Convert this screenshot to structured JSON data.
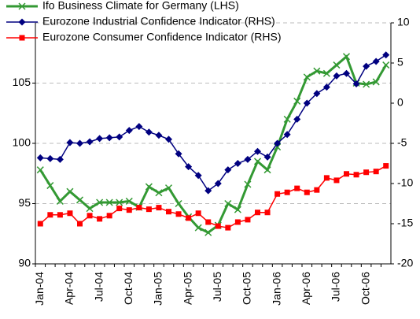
{
  "chart_data": {
    "type": "line",
    "categories": [
      "Jan-04",
      null,
      null,
      "Apr-04",
      null,
      null,
      "Jul-04",
      null,
      null,
      "Oct-04",
      null,
      null,
      "Jan-05",
      null,
      null,
      "Apr-05",
      null,
      null,
      "Jul-05",
      null,
      null,
      "Oct-05",
      null,
      null,
      "Jan-06",
      null,
      null,
      "Apr-06",
      null,
      null,
      "Jul-06",
      null,
      null,
      "Oct-06",
      null,
      null
    ],
    "ylim": [
      90,
      110
    ],
    "yticks": [
      90,
      95,
      100,
      105
    ],
    "y2lim": [
      -20,
      10
    ],
    "y2ticks": [
      -20,
      -15,
      -10,
      -5,
      0,
      5,
      10
    ],
    "grid": true,
    "legend": "top-left",
    "series": [
      {
        "name": "Ifo Business Climate for Germany (LHS)",
        "color": "#339933",
        "marker": "x",
        "values": [
          97.8,
          96.5,
          95.2,
          96.0,
          95.3,
          94.6,
          95.1,
          95.1,
          95.1,
          95.2,
          94.7,
          96.4,
          95.9,
          96.3,
          95.0,
          93.9,
          93.0,
          92.6,
          93.2,
          95.0,
          94.5,
          96.6,
          98.5,
          97.8,
          99.7,
          102.0,
          103.5,
          105.5,
          106.0,
          105.8,
          106.5,
          107.2,
          105.0,
          104.9,
          105.1,
          106.5
        ]
      },
      {
        "name": "Eurozone Industrial Confidence Indicator (RHS)",
        "color": "#000080",
        "marker": "diamond",
        "axis": "y2",
        "values": [
          -6.8,
          -6.9,
          -7.0,
          -4.9,
          -5.0,
          -4.8,
          -4.4,
          -4.3,
          -4.2,
          -3.4,
          -2.9,
          -3.6,
          -4.0,
          -4.5,
          -6.3,
          -7.9,
          -9.0,
          -10.9,
          -10.0,
          -8.3,
          -7.5,
          -7.0,
          -6.0,
          -6.7,
          -5.0,
          -3.9,
          -2.0,
          0.0,
          1.2,
          2.0,
          3.4,
          3.7,
          2.4,
          4.6,
          5.2,
          6.0
        ]
      },
      {
        "name": "Eurozone Consumer Confidence Indicator (RHS)",
        "color": "#ff0000",
        "marker": "square",
        "axis": "y2",
        "values": [
          -15.0,
          -13.9,
          -13.9,
          -13.7,
          -15.0,
          -14.0,
          -14.4,
          -14.0,
          -13.1,
          -13.3,
          -13.0,
          -13.2,
          -13.0,
          -13.5,
          -13.8,
          -14.3,
          -13.7,
          -14.8,
          -15.3,
          -15.5,
          -14.8,
          -14.5,
          -13.6,
          -13.6,
          -11.3,
          -11.1,
          -10.6,
          -11.1,
          -10.8,
          -9.3,
          -9.6,
          -8.8,
          -8.9,
          -8.6,
          -8.5,
          -7.8
        ]
      }
    ]
  }
}
